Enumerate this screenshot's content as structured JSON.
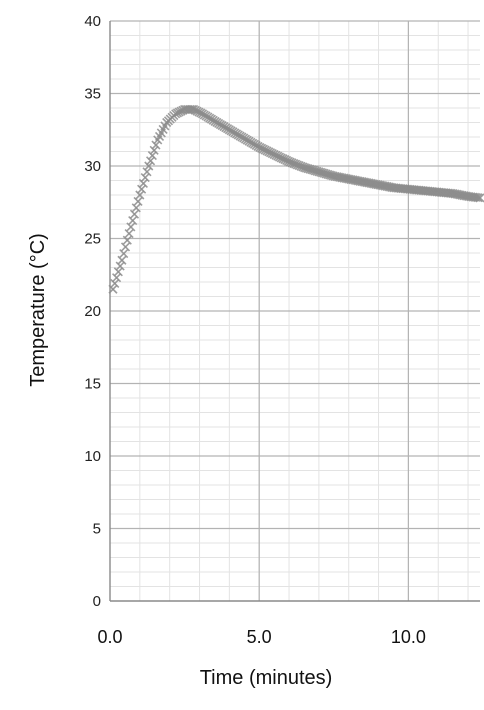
{
  "chart_data": {
    "type": "scatter",
    "title": "",
    "xlabel": "Time (minutes)",
    "ylabel": "Temperature (°C)",
    "xlim": [
      0,
      12.4
    ],
    "ylim": [
      0,
      40
    ],
    "x_ticks": [
      0,
      5,
      10
    ],
    "x_tick_labels": [
      "0.0",
      "5.0",
      "10.0"
    ],
    "y_ticks": [
      0,
      5,
      10,
      15,
      20,
      25,
      30,
      35,
      40
    ],
    "y_tick_labels": [
      "0",
      "5",
      "10",
      "15",
      "20",
      "25",
      "30",
      "35",
      "40"
    ],
    "grid": true,
    "legend": "none",
    "marker_color": "#8c8c8c",
    "series": [
      {
        "x": [
          0.1,
          0.4,
          0.7,
          1.0,
          1.3,
          1.6,
          1.9,
          2.2,
          2.5,
          2.8,
          3.1,
          3.5,
          4.0,
          4.5,
          5.0,
          5.5,
          6.0,
          6.5,
          7.0,
          7.5,
          8.0,
          8.5,
          9.0,
          9.5,
          10.0,
          10.5,
          11.0,
          11.5,
          12.0,
          12.4
        ],
        "y": [
          21.5,
          23.5,
          25.8,
          28.0,
          30.0,
          31.8,
          33.0,
          33.6,
          33.9,
          33.9,
          33.6,
          33.1,
          32.5,
          31.9,
          31.3,
          30.8,
          30.3,
          29.9,
          29.6,
          29.3,
          29.1,
          28.9,
          28.7,
          28.5,
          28.4,
          28.3,
          28.2,
          28.1,
          27.9,
          27.8
        ]
      }
    ]
  }
}
